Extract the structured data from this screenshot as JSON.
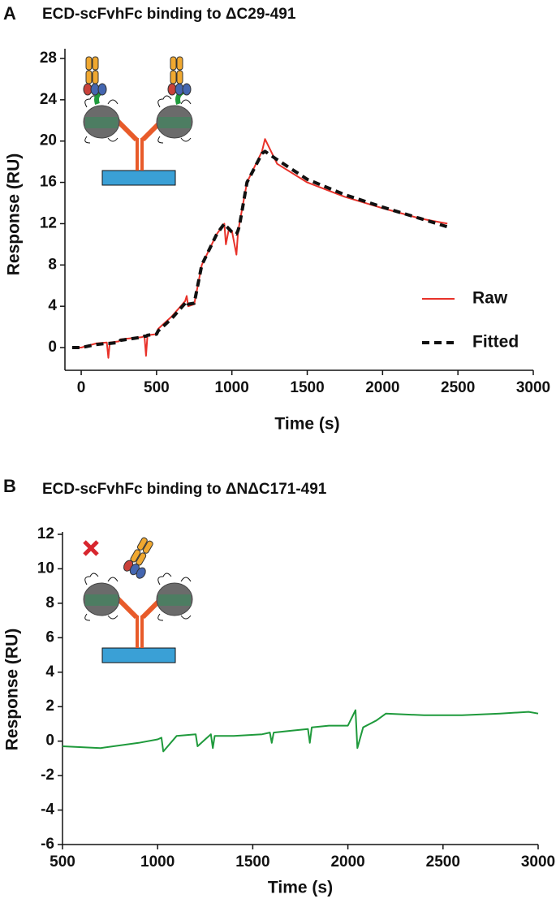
{
  "chart_data": [
    {
      "type": "line",
      "panel_label": "A",
      "title": "ECD-scFvhFc binding to ΔC29-491",
      "x_label": "Time (s)",
      "y_label": "Response (RU)",
      "x": [
        -60,
        0,
        100,
        170,
        180,
        190,
        250,
        260,
        400,
        420,
        430,
        440,
        500,
        510,
        600,
        690,
        700,
        710,
        750,
        800,
        900,
        950,
        960,
        980,
        1000,
        1030,
        1040,
        1050,
        1100,
        1200,
        1220,
        1300,
        1500,
        1750,
        2000,
        2250,
        2430
      ],
      "series": [
        {
          "name": "Raw",
          "color": "#e8322a",
          "linestyle": "solid",
          "values": [
            0,
            0,
            0.4,
            0.5,
            -1,
            0.5,
            0.6,
            0.8,
            1.0,
            1.1,
            -0.8,
            1.2,
            1.3,
            1.8,
            3,
            4.5,
            5,
            4,
            4.2,
            8,
            11,
            12,
            10,
            11.5,
            11.3,
            9,
            11,
            12,
            16,
            19,
            20.2,
            17.8,
            16,
            14.6,
            13.5,
            12.5,
            12
          ]
        },
        {
          "name": "Fitted",
          "color": "#111111",
          "linestyle": "dashed",
          "values": [
            0,
            0,
            0.3,
            0.4,
            0.4,
            0.4,
            0.5,
            0.7,
            1.0,
            1.1,
            1.1,
            1.2,
            1.3,
            1.6,
            2.8,
            4.3,
            4.5,
            4.2,
            4.3,
            8,
            11,
            12,
            11.8,
            11.5,
            11.2,
            11,
            11.3,
            11.8,
            16,
            18.8,
            19,
            18.2,
            16.3,
            14.8,
            13.6,
            12.5,
            11.7
          ]
        }
      ],
      "xlim": [
        -108,
        3000
      ],
      "xticks": [
        0,
        500,
        1000,
        1500,
        2000,
        2500,
        3000
      ],
      "ylim": [
        -2.2,
        28
      ],
      "yticks": [
        0,
        4,
        8,
        12,
        16,
        20,
        24,
        28
      ]
    },
    {
      "type": "line",
      "panel_label": "B",
      "title": "ECD-scFvhFc binding to ΔNΔC171-491",
      "x_label": "Time (s)",
      "y_label": "Response (RU)",
      "x": [
        500,
        700,
        900,
        1000,
        1020,
        1030,
        1100,
        1200,
        1210,
        1280,
        1290,
        1300,
        1400,
        1550,
        1590,
        1600,
        1610,
        1700,
        1790,
        1800,
        1810,
        1900,
        2000,
        2040,
        2050,
        2080,
        2150,
        2200,
        2400,
        2600,
        2800,
        2950,
        3000
      ],
      "series": [
        {
          "color": "#1f9a3c",
          "linestyle": "solid",
          "values": [
            -0.3,
            -0.4,
            -0.1,
            0.1,
            0.2,
            -0.6,
            0.3,
            0.4,
            -0.3,
            0.4,
            -0.4,
            0.3,
            0.3,
            0.4,
            0.5,
            -0.1,
            0.5,
            0.6,
            0.7,
            -0.1,
            0.8,
            0.9,
            0.9,
            1.8,
            -0.4,
            0.8,
            1.2,
            1.6,
            1.5,
            1.5,
            1.6,
            1.7,
            1.6
          ]
        }
      ],
      "xlim": [
        500,
        3000
      ],
      "xticks": [
        500,
        1000,
        1500,
        2000,
        2500,
        3000
      ],
      "ylim": [
        -6,
        12
      ],
      "yticks": [
        -6,
        -4,
        -2,
        0,
        2,
        4,
        6,
        8,
        10,
        12
      ]
    }
  ]
}
